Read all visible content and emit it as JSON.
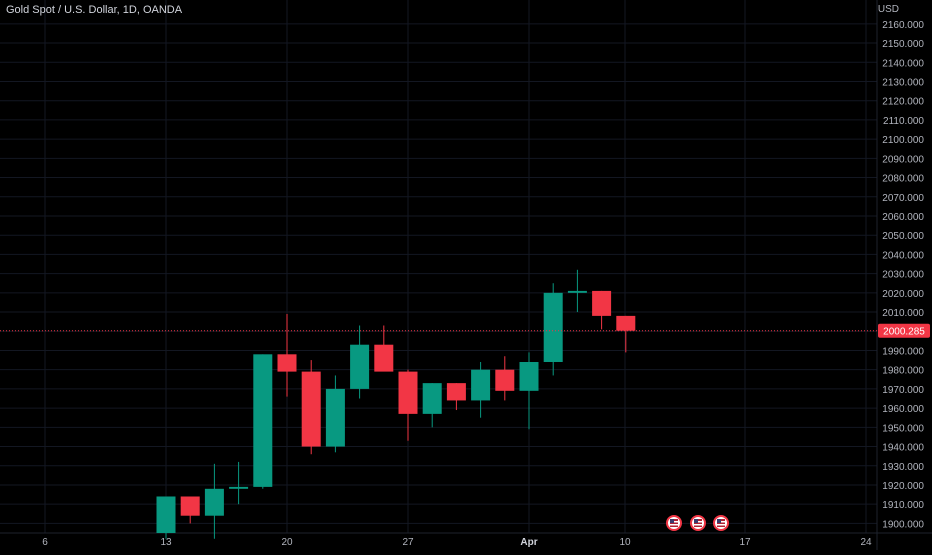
{
  "header": {
    "symbol_title": "Gold Spot / U.S. Dollar, 1D, OANDA"
  },
  "price_axis": {
    "currency": "USD",
    "last_price_label": "2000.285"
  },
  "colors": {
    "background": "#000000",
    "up": "#089981",
    "down": "#f23645",
    "grid": "#131722",
    "text": "#d1d4dc",
    "last_price_line": "#f23645"
  },
  "icons": [
    "us-flag-event-icon",
    "us-flag-event-icon",
    "us-flag-event-icon"
  ],
  "chart_data": {
    "type": "candlestick",
    "title": "Gold Spot / U.S. Dollar, 1D, OANDA",
    "y_unit": "USD",
    "ylim": [
      1895,
      2162
    ],
    "y_ticks": [
      1900,
      1910,
      1920,
      1930,
      1940,
      1950,
      1960,
      1970,
      1980,
      1990,
      2000,
      2010,
      2020,
      2030,
      2040,
      2050,
      2060,
      2070,
      2080,
      2090,
      2100,
      2110,
      2120,
      2130,
      2140,
      2150,
      2160
    ],
    "x_tick_labels": [
      "6",
      "13",
      "20",
      "27",
      "Apr",
      "10",
      "17",
      "24"
    ],
    "grid": true,
    "last_price": 2000.285,
    "candles": [
      {
        "open": 1895,
        "high": 1914,
        "low": 1892,
        "close": 1914
      },
      {
        "open": 1914,
        "high": 1914,
        "low": 1900,
        "close": 1904
      },
      {
        "open": 1904,
        "high": 1931,
        "low": 1892,
        "close": 1918
      },
      {
        "open": 1918,
        "high": 1932,
        "low": 1910,
        "close": 1919
      },
      {
        "open": 1919,
        "high": 1988,
        "low": 1918,
        "close": 1988
      },
      {
        "open": 1988,
        "high": 2009,
        "low": 1966,
        "close": 1979
      },
      {
        "open": 1979,
        "high": 1985,
        "low": 1936,
        "close": 1940
      },
      {
        "open": 1940,
        "high": 1977,
        "low": 1937,
        "close": 1970
      },
      {
        "open": 1970,
        "high": 2003,
        "low": 1965,
        "close": 1993
      },
      {
        "open": 1993,
        "high": 2003,
        "low": 1980,
        "close": 1979
      },
      {
        "open": 1979,
        "high": 1980,
        "low": 1943,
        "close": 1957
      },
      {
        "open": 1957,
        "high": 1973,
        "low": 1950,
        "close": 1973
      },
      {
        "open": 1973,
        "high": 1973,
        "low": 1959,
        "close": 1964
      },
      {
        "open": 1964,
        "high": 1984,
        "low": 1955,
        "close": 1980
      },
      {
        "open": 1980,
        "high": 1987,
        "low": 1964,
        "close": 1969
      },
      {
        "open": 1969,
        "high": 1989,
        "low": 1949,
        "close": 1984
      },
      {
        "open": 1984,
        "high": 2025,
        "low": 1977,
        "close": 2020
      },
      {
        "open": 2020,
        "high": 2032,
        "low": 2010,
        "close": 2021
      },
      {
        "open": 2021,
        "high": 2021,
        "low": 2001,
        "close": 2008
      },
      {
        "open": 2008,
        "high": 2008,
        "low": 1989,
        "close": 2000.285
      }
    ]
  }
}
